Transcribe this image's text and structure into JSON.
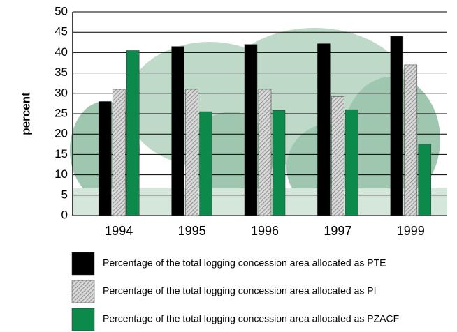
{
  "chart_data": {
    "type": "bar",
    "y_label": "percent",
    "categories": [
      "1994",
      "1995",
      "1996",
      "1997",
      "1999"
    ],
    "series": [
      {
        "name": "Percentage of the total logging concession area allocated as PTE",
        "color": "#000000",
        "values": [
          28,
          41.5,
          42,
          42.2,
          44
        ]
      },
      {
        "name": "Percentage of the total logging concession area allocated as PI",
        "color": "#b8b8b8",
        "pattern": "hatch",
        "values": [
          31,
          31,
          31,
          29.2,
          37
        ]
      },
      {
        "name": "Percentage of the total logging concession area allocated as PZACF",
        "color": "#0b8a4c",
        "values": [
          40.5,
          25.5,
          25.8,
          26,
          17.5
        ]
      }
    ],
    "ylim": [
      0,
      50
    ],
    "yticks": [
      0,
      5,
      10,
      15,
      20,
      25,
      30,
      35,
      40,
      45,
      50
    ],
    "grid": true
  }
}
